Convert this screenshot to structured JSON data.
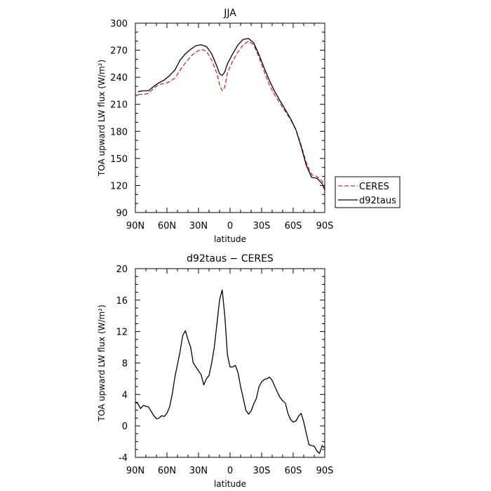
{
  "chart_data": [
    {
      "type": "line",
      "title": "JJA",
      "xlabel": "latitude",
      "ylabel": "TOA upward LW flux (W/m²)",
      "xlim": [
        90,
        -90
      ],
      "ylim": [
        90,
        300
      ],
      "xticks": [
        90,
        60,
        30,
        0,
        -30,
        -60,
        -90
      ],
      "xtick_labels": [
        "90N",
        "60N",
        "30N",
        "0",
        "30S",
        "60S",
        "90S"
      ],
      "yticks": [
        90,
        120,
        150,
        180,
        210,
        240,
        270,
        300
      ],
      "grid": false,
      "legend": "right",
      "series": [
        {
          "name": "CERES",
          "color": "#e0202a",
          "dash": "dashed",
          "x": [
            87.5,
            82.5,
            77.5,
            72.5,
            67.5,
            62.5,
            57.5,
            52.5,
            47.5,
            42.5,
            37.5,
            32.5,
            27.5,
            22.5,
            17.5,
            12.5,
            10,
            7.5,
            5,
            2.5,
            -2.5,
            -7.5,
            -12.5,
            -17.5,
            -22.5,
            -27.5,
            -32.5,
            -37.5,
            -42.5,
            -47.5,
            -52.5,
            -57.5,
            -62.5,
            -67.5,
            -72.5,
            -77.5,
            -82.5,
            -87.5,
            -90
          ],
          "y": [
            221,
            221,
            222,
            228,
            232,
            233,
            235,
            239,
            248,
            256,
            263,
            268,
            271,
            269,
            259,
            244,
            232,
            225,
            229,
            245,
            258,
            268,
            276,
            280,
            276,
            262,
            246,
            231,
            220,
            211,
            202,
            193,
            182,
            165,
            145,
            132,
            130,
            125,
            116
          ]
        },
        {
          "name": "d92taus",
          "color": "#000000",
          "dash": "solid",
          "x": [
            87.5,
            82.5,
            77.5,
            72.5,
            67.5,
            62.5,
            57.5,
            52.5,
            47.5,
            42.5,
            37.5,
            32.5,
            27.5,
            22.5,
            17.5,
            12.5,
            10,
            7.5,
            5,
            2.5,
            -2.5,
            -7.5,
            -12.5,
            -17.5,
            -22.5,
            -27.5,
            -32.5,
            -37.5,
            -42.5,
            -47.5,
            -52.5,
            -57.5,
            -62.5,
            -67.5,
            -72.5,
            -77.5,
            -82.5,
            -87.5,
            -90
          ],
          "y": [
            224,
            225,
            225,
            230,
            234,
            237,
            242,
            248,
            259,
            266,
            271,
            275,
            276,
            274,
            266,
            252,
            244,
            242,
            246,
            255,
            266,
            276,
            282,
            283,
            278,
            265,
            250,
            236,
            224,
            214,
            204,
            194,
            182,
            163,
            142,
            129,
            128,
            122,
            115
          ]
        }
      ]
    },
    {
      "type": "line",
      "title": "d92taus − CERES",
      "xlabel": "latitude",
      "ylabel": "TOA upward LW flux (W/m²)",
      "xlim": [
        90,
        -90
      ],
      "ylim": [
        -4,
        20
      ],
      "xticks": [
        90,
        60,
        30,
        0,
        -30,
        -60,
        -90
      ],
      "xtick_labels": [
        "90N",
        "60N",
        "30N",
        "0",
        "30S",
        "60S",
        "90S"
      ],
      "yticks": [
        -4,
        0,
        4,
        8,
        12,
        16,
        20
      ],
      "grid": false,
      "series": [
        {
          "color": "#000000",
          "x": [
            90,
            87.5,
            85,
            82.5,
            77.5,
            72.5,
            70,
            67.5,
            65,
            62.5,
            60,
            57.5,
            55,
            52.5,
            50,
            47.5,
            45,
            42.5,
            40,
            37.5,
            35,
            32.5,
            30,
            27.5,
            25,
            22.5,
            20,
            17.5,
            15,
            12.5,
            10,
            7.5,
            5,
            2.5,
            0,
            -2.5,
            -5,
            -7.5,
            -10,
            -12.5,
            -15,
            -17.5,
            -20,
            -22.5,
            -25,
            -27.5,
            -30,
            -32.5,
            -35,
            -37.5,
            -40,
            -42.5,
            -45,
            -47.5,
            -50,
            -52.5,
            -55,
            -57.5,
            -60,
            -62.5,
            -65,
            -67.5,
            -70,
            -72.5,
            -75,
            -77.5,
            -80,
            -82.5,
            -85,
            -87.5,
            -90
          ],
          "y": [
            3,
            2.8,
            2.2,
            2.6,
            2.4,
            1.3,
            0.9,
            1.0,
            1.3,
            1.2,
            1.6,
            2.4,
            4.0,
            6.2,
            7.8,
            9.5,
            11.5,
            12.1,
            11.0,
            10.0,
            8.0,
            7.5,
            7.0,
            6.5,
            5.2,
            6.0,
            6.4,
            8.0,
            10.0,
            13.0,
            16.0,
            17.3,
            14.0,
            9.0,
            7.5,
            7.5,
            7.7,
            6.8,
            5.0,
            3.5,
            2.0,
            1.5,
            1.9,
            2.8,
            3.5,
            5.0,
            5.6,
            5.9,
            6.0,
            6.2,
            5.8,
            5.0,
            4.3,
            3.6,
            3.2,
            2.9,
            1.6,
            0.8,
            0.5,
            0.6,
            1.2,
            1.6,
            0.5,
            -1.0,
            -2.4,
            -2.5,
            -2.6,
            -3.2,
            -3.5,
            -2.5,
            -2.8
          ]
        }
      ]
    }
  ]
}
